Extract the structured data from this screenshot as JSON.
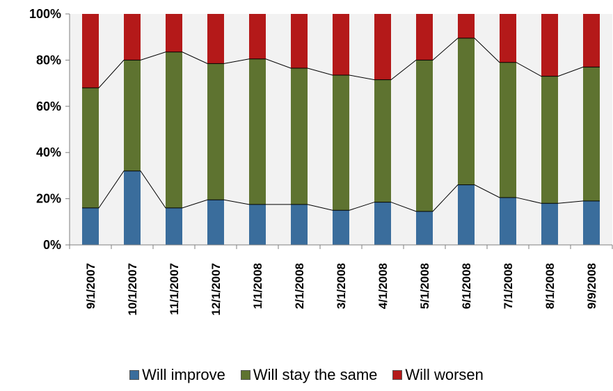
{
  "chart_data": {
    "type": "bar",
    "stacked": true,
    "percent_stacked": true,
    "categories": [
      "9/1/2007",
      "10/1/2007",
      "11/1/2007",
      "12/1/2007",
      "1/1/2008",
      "2/1/2008",
      "3/1/2008",
      "4/1/2008",
      "5/1/2008",
      "6/1/2008",
      "7/1/2008",
      "8/1/2008",
      "9/9/2008"
    ],
    "series": [
      {
        "name": "Will improve",
        "color": "#3a6d9c",
        "values": [
          16,
          32,
          16,
          19.5,
          17.5,
          17.5,
          15,
          18.5,
          14.5,
          26,
          20.5,
          18,
          19
        ]
      },
      {
        "name": "Will stay the same",
        "color": "#5e7330",
        "values": [
          52,
          48,
          67.5,
          59,
          63,
          59,
          58.5,
          53,
          65.5,
          63.5,
          58.5,
          55,
          58
        ]
      },
      {
        "name": "Will worsen",
        "color": "#b41919",
        "values": [
          32,
          20,
          16.5,
          21.5,
          19.5,
          23.5,
          26.5,
          28.5,
          20,
          10.5,
          21,
          27,
          23
        ]
      }
    ],
    "yticks": [
      "0%",
      "20%",
      "40%",
      "60%",
      "80%",
      "100%"
    ],
    "ylim": [
      0,
      100
    ],
    "series_lines": true,
    "grid": false,
    "legend_position": "bottom",
    "title": "",
    "xlabel": "",
    "ylabel": ""
  }
}
